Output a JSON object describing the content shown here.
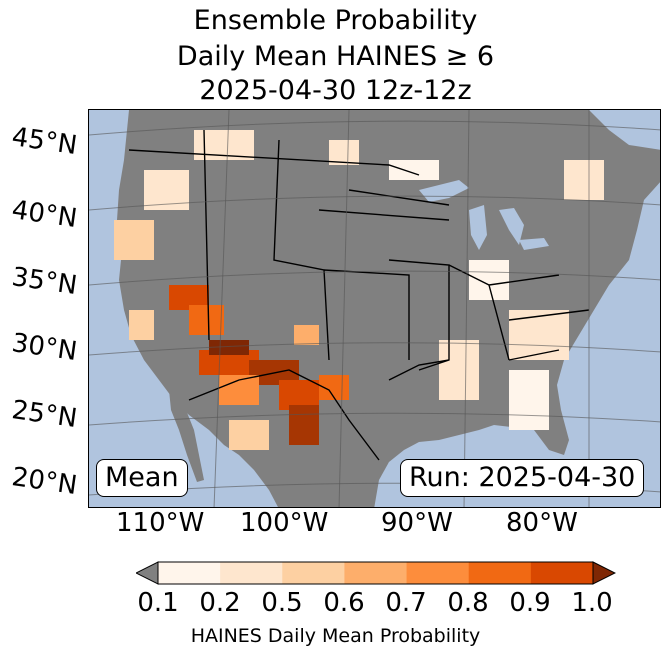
{
  "title": {
    "line1": "Ensemble Probability",
    "line2": "Daily Mean HAINES ≥ 6",
    "line3": "2025-04-30 12z-12z"
  },
  "map": {
    "ocean_color": "#b0c4de",
    "land_color": "#808080",
    "lat_labels": [
      "45°N",
      "40°N",
      "35°N",
      "30°N",
      "25°N",
      "20°N"
    ],
    "lon_labels": [
      "110°W",
      "100°W",
      "90°W",
      "80°W"
    ]
  },
  "labels": {
    "mean": "Mean",
    "run": "Run: 2025-04-30"
  },
  "colorbar": {
    "title": "HAINES Daily Mean Probability",
    "tick_labels": [
      "0.1",
      "0.2",
      "0.5",
      "0.6",
      "0.7",
      "0.8",
      "0.9",
      "1.0"
    ],
    "under_color": "#808080",
    "over_color": "#7f2704",
    "colors": [
      "#fff5eb",
      "#fee6ce",
      "#fdd0a2",
      "#fdae6b",
      "#fd8d3c",
      "#f16913",
      "#d94801"
    ]
  }
}
